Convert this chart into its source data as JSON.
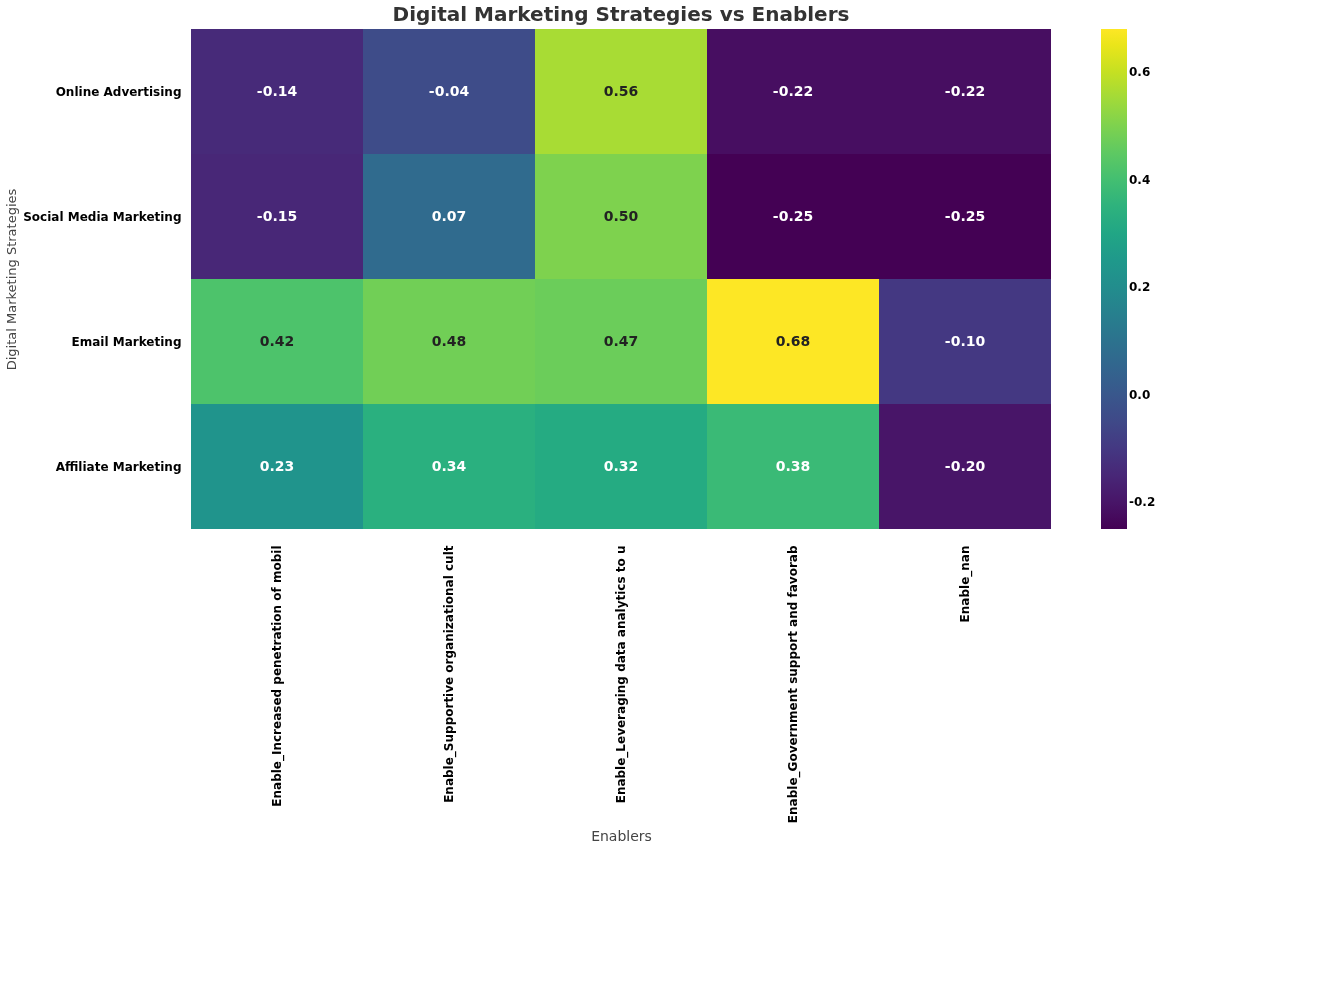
{
  "chart_data": {
    "type": "heatmap",
    "title": "Digital Marketing Strategies vs Enablers",
    "xlabel": "Enablers",
    "ylabel": "Digital Marketing Strategies",
    "categories": [
      "Enable_Increased penetration of mobil",
      "Enable_Supportive organizational cult",
      "Enable_Leveraging data analytics to u",
      "Enable_Government support and favorab",
      "Enable_nan"
    ],
    "y_categories": [
      "Online Advertising",
      "Social Media Marketing",
      "Email Marketing",
      "Affiliate Marketing"
    ],
    "cells": [
      [
        -0.14,
        -0.04,
        0.56,
        -0.22,
        -0.22
      ],
      [
        -0.15,
        0.07,
        0.5,
        -0.25,
        -0.25
      ],
      [
        0.42,
        0.48,
        0.47,
        0.68,
        -0.1
      ],
      [
        0.23,
        0.34,
        0.32,
        0.38,
        -0.2
      ]
    ],
    "clim": [
      -0.25,
      0.68
    ],
    "cticks": [
      -0.2,
      {
        "value": 0,
        "label": "0.0"
      },
      0.2,
      0.4,
      0.6
    ],
    "cell_labels": [
      [
        "-0.14",
        "-0.04",
        "0.56",
        "-0.22",
        "-0.22"
      ],
      [
        "-0.15",
        "0.07",
        "0.50",
        "-0.25",
        "-0.25"
      ],
      [
        "0.42",
        "0.48",
        "0.47",
        "0.68",
        "-0.10"
      ],
      [
        "0.23",
        "0.34",
        "0.32",
        "0.38",
        "-0.20"
      ]
    ]
  }
}
